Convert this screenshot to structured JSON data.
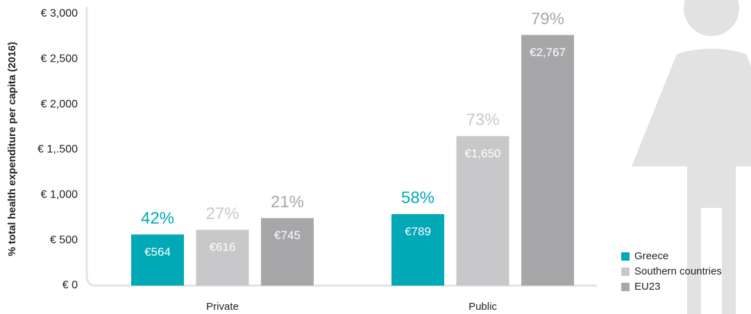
{
  "chart_data": {
    "type": "bar",
    "y_axis_label": "% total health expenditure per capita (2016)",
    "categories": [
      "Private",
      "Public"
    ],
    "series": [
      {
        "name": "Greece",
        "color": "#00a9b5",
        "values": [
          564,
          789
        ],
        "value_labels": [
          "€564",
          "€789"
        ],
        "share_labels": [
          "42%",
          "58%"
        ]
      },
      {
        "name": "Southern countries",
        "color": "#c8c8ca",
        "values": [
          616,
          1650
        ],
        "value_labels": [
          "€616",
          "€1,650"
        ],
        "share_labels": [
          "27%",
          "73%"
        ]
      },
      {
        "name": "EU23",
        "color": "#a7a7aa",
        "values": [
          745,
          2767
        ],
        "value_labels": [
          "€745",
          "€2,767"
        ],
        "share_labels": [
          "21%",
          "79%"
        ]
      }
    ],
    "ylim": [
      0,
      3000
    ],
    "yticks": [
      {
        "value": 0,
        "label": "€ 0"
      },
      {
        "value": 500,
        "label": "€ 500"
      },
      {
        "value": 1000,
        "label": "€ 1,000"
      },
      {
        "value": 1500,
        "label": "€ 1,.500"
      },
      {
        "value": 2000,
        "label": "€ 2,000"
      },
      {
        "value": 2500,
        "label": "€ 2,500"
      },
      {
        "value": 3000,
        "label": "€ 3,000"
      }
    ],
    "legend": "bottom-right"
  }
}
